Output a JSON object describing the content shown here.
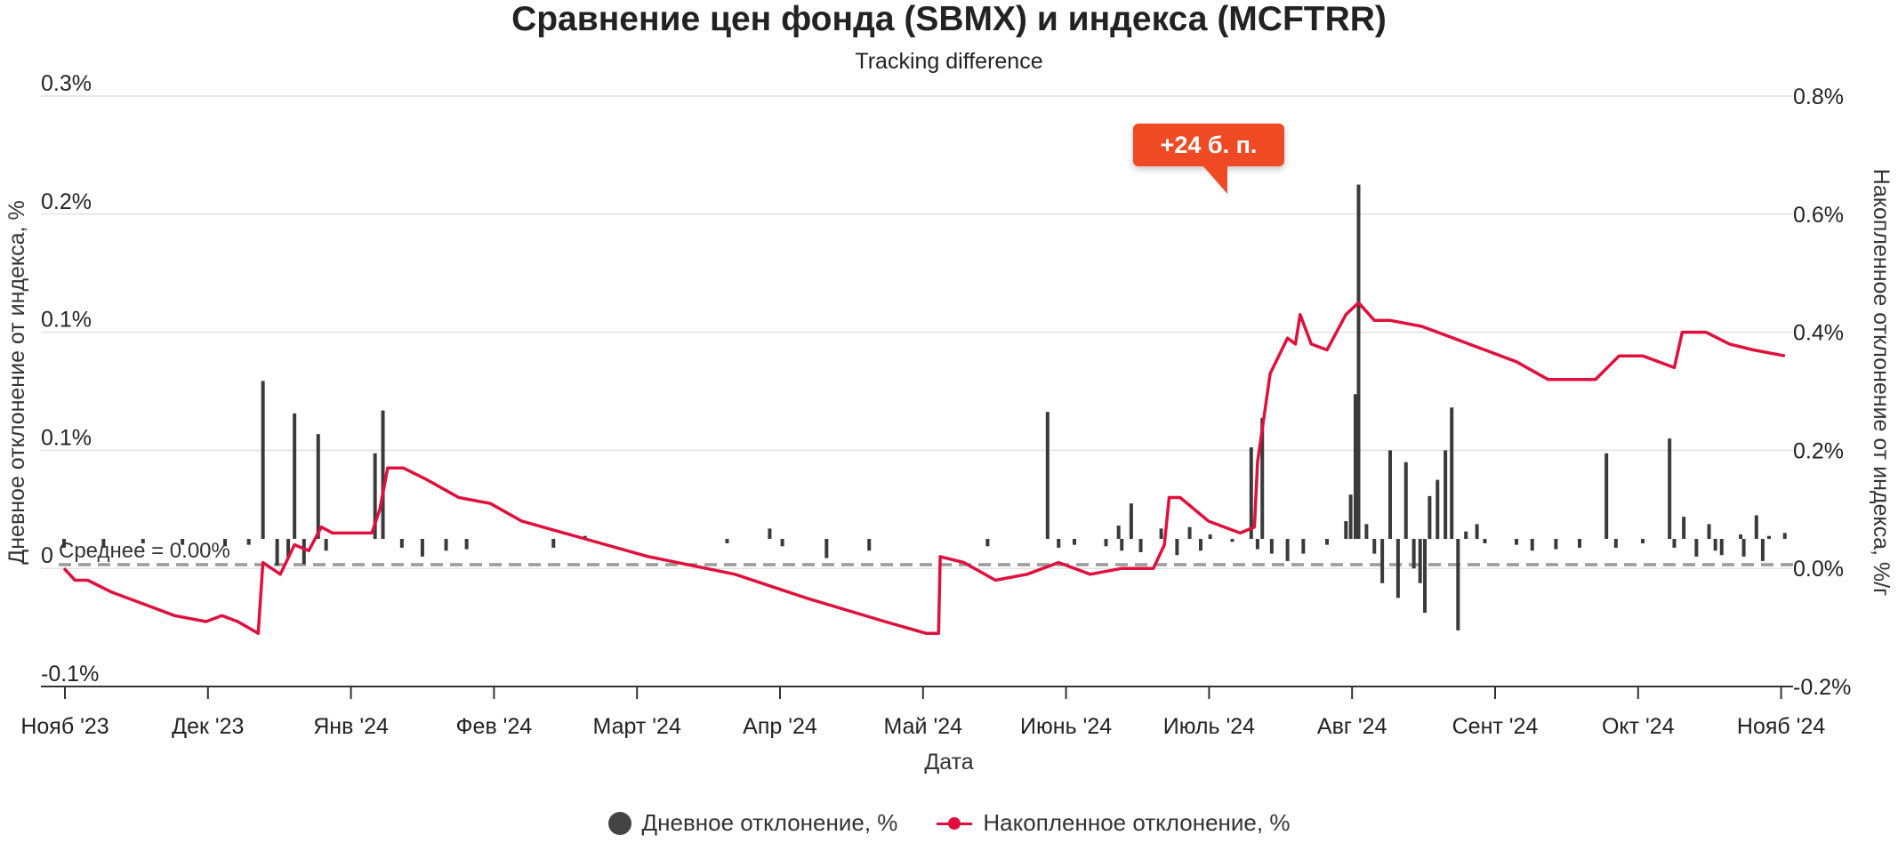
{
  "chart_data": {
    "type": "bar+line",
    "title": "Сравнение цен фонда (SBMX) и индекса (MCFTRR)",
    "subtitle": "Tracking difference",
    "xlabel": "Дата",
    "ylabel_left": "Дневное отклонение от индекса, %",
    "ylabel_right": "Накопленное отклонение от индекса, %/г",
    "x_ticks": [
      "Нояб '23",
      "Дек '23",
      "Янв '24",
      "Фев '24",
      "Март '24",
      "Апр '24",
      "Май '24",
      "Июнь '24",
      "Июль '24",
      "Авг '24",
      "Сент '24",
      "Окт '24",
      "Нояб '24"
    ],
    "y_left_ticks": [
      "0.3%",
      "0.2%",
      "0.1%",
      "0.1%",
      "0",
      "-0.1%"
    ],
    "y_right_ticks": [
      "0.8%",
      "0.6%",
      "0.4%",
      "0.2%",
      "0.0%",
      "-0.2%"
    ],
    "y_left_range": [
      -0.1,
      0.3
    ],
    "y_right_range": [
      -0.2,
      0.8
    ],
    "mean_label": "Среднее = 0.00%",
    "callout": "+24 б. п.",
    "legend": [
      "Дневное отклонение, %",
      "Накопленное отклонение, %"
    ],
    "colors": {
      "daily": "#3a3a3a",
      "cumulative": "#e0103c",
      "mean": "#9a9a9a",
      "callout": "#f04a24"
    },
    "daily_series": {
      "name": "Дневное отклонение, %",
      "points": [
        [
          0.0,
          -0.006
        ],
        [
          2.5,
          -0.006
        ],
        [
          5.0,
          -0.003
        ],
        [
          7.5,
          -0.004
        ],
        [
          10.2,
          -0.005
        ],
        [
          11.7,
          -0.004
        ],
        [
          12.6,
          0.107
        ],
        [
          13.5,
          -0.018
        ],
        [
          14.2,
          -0.012
        ],
        [
          14.6,
          0.085
        ],
        [
          15.2,
          -0.017
        ],
        [
          16.1,
          0.071
        ],
        [
          16.6,
          -0.008
        ],
        [
          19.7,
          0.058
        ],
        [
          20.2,
          0.087
        ],
        [
          21.4,
          -0.006
        ],
        [
          22.7,
          -0.012
        ],
        [
          24.2,
          -0.008
        ],
        [
          25.5,
          -0.007
        ],
        [
          31.0,
          -0.006
        ],
        [
          33.0,
          0.002
        ],
        [
          42.0,
          -0.003
        ],
        [
          44.7,
          0.007
        ],
        [
          45.5,
          -0.005
        ],
        [
          48.3,
          -0.013
        ],
        [
          51.0,
          -0.008
        ],
        [
          58.5,
          -0.005
        ],
        [
          62.3,
          0.086
        ],
        [
          63.0,
          -0.006
        ],
        [
          64.0,
          -0.004
        ],
        [
          66.0,
          -0.005
        ],
        [
          66.8,
          0.009
        ],
        [
          67.0,
          -0.008
        ],
        [
          67.6,
          0.024
        ],
        [
          68.2,
          -0.009
        ],
        [
          69.5,
          0.007
        ],
        [
          70.5,
          -0.011
        ],
        [
          71.3,
          0.008
        ],
        [
          72.0,
          -0.008
        ],
        [
          72.6,
          0.003
        ],
        [
          74.0,
          -0.002
        ],
        [
          75.2,
          0.062
        ],
        [
          75.6,
          -0.007
        ],
        [
          75.9,
          0.082
        ],
        [
          76.5,
          -0.01
        ],
        [
          77.5,
          -0.015
        ],
        [
          78.5,
          -0.01
        ],
        [
          80.0,
          -0.004
        ],
        [
          81.2,
          0.012
        ],
        [
          81.5,
          0.03
        ],
        [
          81.8,
          0.098
        ],
        [
          82.0,
          0.24
        ],
        [
          82.5,
          0.01
        ],
        [
          83.0,
          -0.01
        ],
        [
          83.5,
          -0.03
        ],
        [
          84.0,
          0.06
        ],
        [
          84.5,
          -0.04
        ],
        [
          85.0,
          0.052
        ],
        [
          85.5,
          -0.02
        ],
        [
          85.9,
          -0.03
        ],
        [
          86.2,
          -0.05
        ],
        [
          86.5,
          0.029
        ],
        [
          87.0,
          0.04
        ],
        [
          87.5,
          0.06
        ],
        [
          87.9,
          0.089
        ],
        [
          88.3,
          -0.062
        ],
        [
          88.8,
          0.005
        ],
        [
          89.5,
          0.01
        ],
        [
          90.0,
          -0.003
        ],
        [
          92.0,
          -0.004
        ],
        [
          93.0,
          -0.008
        ],
        [
          94.5,
          -0.007
        ],
        [
          96.0,
          -0.006
        ],
        [
          97.7,
          0.058
        ],
        [
          98.3,
          -0.006
        ],
        [
          100.0,
          -0.003
        ],
        [
          101.7,
          0.068
        ],
        [
          102.0,
          -0.006
        ],
        [
          102.6,
          0.015
        ],
        [
          103.4,
          -0.012
        ],
        [
          104.2,
          0.01
        ],
        [
          104.6,
          -0.008
        ],
        [
          105.0,
          -0.011
        ],
        [
          106.2,
          0.003
        ],
        [
          106.4,
          -0.012
        ],
        [
          107.2,
          0.016
        ],
        [
          107.6,
          -0.015
        ],
        [
          108.0,
          0.002
        ],
        [
          109.0,
          0.004
        ]
      ]
    },
    "cumulative_series": {
      "name": "Накопленное отклонение, %",
      "points": [
        [
          0.0,
          0.0
        ],
        [
          0.7,
          -0.02
        ],
        [
          1.5,
          -0.02
        ],
        [
          3.0,
          -0.04
        ],
        [
          5.0,
          -0.06
        ],
        [
          7.0,
          -0.08
        ],
        [
          9.0,
          -0.09
        ],
        [
          10.0,
          -0.08
        ],
        [
          11.0,
          -0.09
        ],
        [
          12.3,
          -0.11
        ],
        [
          12.6,
          0.01
        ],
        [
          13.7,
          -0.01
        ],
        [
          14.6,
          0.04
        ],
        [
          15.5,
          0.03
        ],
        [
          16.3,
          0.07
        ],
        [
          17.0,
          0.06
        ],
        [
          19.5,
          0.06
        ],
        [
          20.0,
          0.1
        ],
        [
          20.5,
          0.17
        ],
        [
          21.5,
          0.17
        ],
        [
          23.0,
          0.15
        ],
        [
          25.0,
          0.12
        ],
        [
          27.0,
          0.11
        ],
        [
          29.0,
          0.08
        ],
        [
          33.0,
          0.05
        ],
        [
          37.0,
          0.02
        ],
        [
          42.5,
          -0.01
        ],
        [
          47.0,
          -0.05
        ],
        [
          52.0,
          -0.09
        ],
        [
          54.6,
          -0.11
        ],
        [
          55.4,
          -0.11
        ],
        [
          55.5,
          0.02
        ],
        [
          57.0,
          0.01
        ],
        [
          59.0,
          -0.02
        ],
        [
          61.0,
          -0.01
        ],
        [
          63.0,
          0.01
        ],
        [
          65.0,
          -0.01
        ],
        [
          67.0,
          0.0
        ],
        [
          69.0,
          0.0
        ],
        [
          69.7,
          0.04
        ],
        [
          70.0,
          0.12
        ],
        [
          70.7,
          0.12
        ],
        [
          72.5,
          0.08
        ],
        [
          74.5,
          0.06
        ],
        [
          75.4,
          0.07
        ],
        [
          75.6,
          0.18
        ],
        [
          76.4,
          0.33
        ],
        [
          77.5,
          0.39
        ],
        [
          78.0,
          0.38
        ],
        [
          78.3,
          0.43
        ],
        [
          79.0,
          0.38
        ],
        [
          80.0,
          0.37
        ],
        [
          81.2,
          0.43
        ],
        [
          82.0,
          0.45
        ],
        [
          83.0,
          0.42
        ],
        [
          84.0,
          0.42
        ],
        [
          86.0,
          0.41
        ],
        [
          88.0,
          0.39
        ],
        [
          90.0,
          0.37
        ],
        [
          92.0,
          0.35
        ],
        [
          94.0,
          0.32
        ],
        [
          95.5,
          0.32
        ],
        [
          97.0,
          0.32
        ],
        [
          98.5,
          0.36
        ],
        [
          100.0,
          0.36
        ],
        [
          102.0,
          0.34
        ],
        [
          102.5,
          0.4
        ],
        [
          104.0,
          0.4
        ],
        [
          105.5,
          0.38
        ],
        [
          107.0,
          0.37
        ],
        [
          109.0,
          0.36
        ]
      ]
    }
  }
}
